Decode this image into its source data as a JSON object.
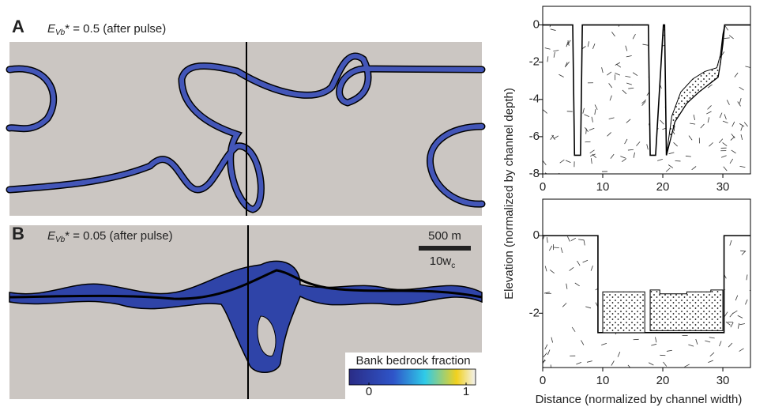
{
  "panel_a": {
    "letter": "A",
    "label_var": "E",
    "label_sub": "Vb",
    "label_rest": "* = 0.5 (after pulse)"
  },
  "panel_b": {
    "letter": "B",
    "label_var": "E",
    "label_sub": "Vb",
    "label_rest": "* = 0.05 (after pulse)",
    "scale_bar": "500 m",
    "scale_alt": "10w",
    "scale_alt_sub": "c",
    "colorbar": {
      "title": "Bank bedrock fraction",
      "ticks": [
        0,
        1
      ]
    }
  },
  "chart_data": [
    {
      "type": "line",
      "xlim": [
        0,
        34.6
      ],
      "ylim": [
        -8,
        1
      ],
      "xticks": [
        0,
        10,
        20,
        30
      ],
      "yticks": [
        0,
        -2,
        -4,
        -6,
        -8
      ],
      "series": [
        {
          "color": "#000000",
          "x": [
            0,
            5,
            5.3,
            6.3,
            6.6,
            17.6,
            17.9,
            18.8,
            20.1,
            20.3,
            20.6,
            22,
            24,
            26,
            28,
            29.2,
            29.6,
            30,
            30.3,
            34.6
          ],
          "values": [
            0,
            0,
            -7,
            -7,
            0,
            0,
            -7,
            -7,
            0,
            0,
            -7,
            -5.2,
            -4.2,
            -3.6,
            -3.1,
            -2.8,
            -2,
            -1,
            0,
            0
          ]
        },
        {
          "color": "#000000",
          "x": [
            20.6,
            21.5,
            23,
            25,
            27,
            29,
            29.6,
            30,
            30.3,
            29.6,
            29.2,
            28,
            26,
            24,
            22
          ],
          "values": [
            -7,
            -4.9,
            -3.6,
            -2.9,
            -2.5,
            -2.3,
            -1.6,
            -0.5,
            0,
            -2,
            -2.8,
            -3.1,
            -3.6,
            -4.2,
            -5.2
          ]
        }
      ]
    },
    {
      "type": "line",
      "xlim": [
        0,
        34.6
      ],
      "ylim": [
        -3.4,
        0.94
      ],
      "xticks": [
        0,
        10,
        20,
        30
      ],
      "yticks": [
        0,
        -2
      ],
      "xlabel": "Distance (normalized by channel width)",
      "ylabel": "Elevation (normalized by channel depth)",
      "series": [
        {
          "color": "#000000",
          "x": [
            0,
            9.2,
            9.2,
            30.2,
            30.2,
            34.6
          ],
          "values": [
            0,
            0,
            -2.5,
            -2.5,
            0,
            0
          ]
        },
        {
          "color": "#000000",
          "x": [
            10,
            10,
            17,
            17
          ],
          "values": [
            -2.5,
            -1.45,
            -1.45,
            -2.5
          ]
        },
        {
          "color": "#000000",
          "x": [
            17.9,
            17.9,
            19.5,
            19.5,
            24,
            24,
            28,
            28,
            30,
            30
          ],
          "values": [
            -2.45,
            -1.4,
            -1.4,
            -1.5,
            -1.5,
            -1.45,
            -1.45,
            -1.4,
            -1.4,
            -2.45
          ]
        }
      ]
    }
  ]
}
